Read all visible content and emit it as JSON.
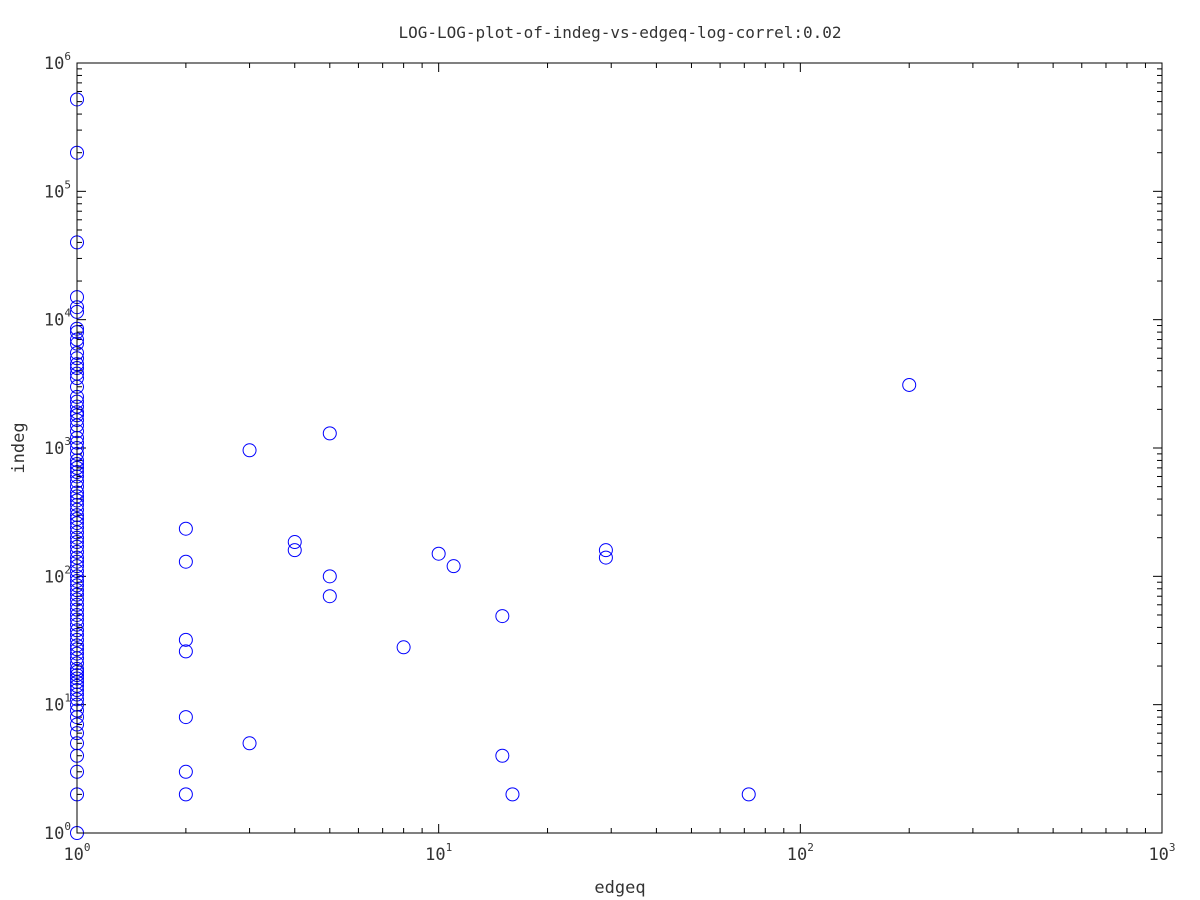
{
  "chart_data": {
    "type": "scatter",
    "title": "LOG-LOG-plot-of-indeg-vs-edgeq-log-correl:0.02",
    "xlabel": "edgeq",
    "ylabel": "indeg",
    "xscale": "log",
    "yscale": "log",
    "xlim": [
      1,
      1000
    ],
    "ylim": [
      1,
      1000000
    ],
    "x_ticks": [
      {
        "base": "10",
        "exp": "0"
      },
      {
        "base": "10",
        "exp": "1"
      },
      {
        "base": "10",
        "exp": "2"
      },
      {
        "base": "10",
        "exp": "3"
      }
    ],
    "y_ticks": [
      {
        "base": "10",
        "exp": "0"
      },
      {
        "base": "10",
        "exp": "1"
      },
      {
        "base": "10",
        "exp": "2"
      },
      {
        "base": "10",
        "exp": "3"
      },
      {
        "base": "10",
        "exp": "4"
      },
      {
        "base": "10",
        "exp": "5"
      },
      {
        "base": "10",
        "exp": "6"
      }
    ],
    "grid": false,
    "marker": "circle-open",
    "marker_color": "#0000ff",
    "points": [
      [
        1,
        520000
      ],
      [
        1,
        200000
      ],
      [
        1,
        40000
      ],
      [
        1,
        15000
      ],
      [
        1,
        12500
      ],
      [
        1,
        11500
      ],
      [
        1,
        8500
      ],
      [
        1,
        8000
      ],
      [
        1,
        7000
      ],
      [
        1,
        6500
      ],
      [
        1,
        5500
      ],
      [
        1,
        5000
      ],
      [
        1,
        4500
      ],
      [
        1,
        4200
      ],
      [
        1,
        3800
      ],
      [
        1,
        3500
      ],
      [
        1,
        3000
      ],
      [
        1,
        2500
      ],
      [
        1,
        2300
      ],
      [
        1,
        2100
      ],
      [
        1,
        1900
      ],
      [
        1,
        1800
      ],
      [
        1,
        1650
      ],
      [
        1,
        1500
      ],
      [
        1,
        1350
      ],
      [
        1,
        1200
      ],
      [
        1,
        1100
      ],
      [
        1,
        1000
      ],
      [
        1,
        900
      ],
      [
        1,
        800
      ],
      [
        1,
        750
      ],
      [
        1,
        700
      ],
      [
        1,
        650
      ],
      [
        1,
        600
      ],
      [
        1,
        550
      ],
      [
        1,
        500
      ],
      [
        1,
        450
      ],
      [
        1,
        420
      ],
      [
        1,
        390
      ],
      [
        1,
        360
      ],
      [
        1,
        330
      ],
      [
        1,
        300
      ],
      [
        1,
        280
      ],
      [
        1,
        260
      ],
      [
        1,
        240
      ],
      [
        1,
        220
      ],
      [
        1,
        200
      ],
      [
        1,
        185
      ],
      [
        1,
        170
      ],
      [
        1,
        155
      ],
      [
        1,
        140
      ],
      [
        1,
        130
      ],
      [
        1,
        120
      ],
      [
        1,
        110
      ],
      [
        1,
        100
      ],
      [
        1,
        92
      ],
      [
        1,
        85
      ],
      [
        1,
        78
      ],
      [
        1,
        72
      ],
      [
        1,
        66
      ],
      [
        1,
        60
      ],
      [
        1,
        55
      ],
      [
        1,
        50
      ],
      [
        1,
        46
      ],
      [
        1,
        42
      ],
      [
        1,
        38
      ],
      [
        1,
        35
      ],
      [
        1,
        32
      ],
      [
        1,
        29
      ],
      [
        1,
        27
      ],
      [
        1,
        25
      ],
      [
        1,
        23
      ],
      [
        1,
        21
      ],
      [
        1,
        19
      ],
      [
        1,
        18
      ],
      [
        1,
        17
      ],
      [
        1,
        16
      ],
      [
        1,
        15
      ],
      [
        1,
        14
      ],
      [
        1,
        13
      ],
      [
        1,
        12
      ],
      [
        1,
        11
      ],
      [
        1,
        10
      ],
      [
        1,
        9
      ],
      [
        1,
        8
      ],
      [
        1,
        7
      ],
      [
        1,
        6
      ],
      [
        1,
        5
      ],
      [
        1,
        4
      ],
      [
        1,
        3
      ],
      [
        1,
        2
      ],
      [
        1,
        1
      ],
      [
        2,
        235
      ],
      [
        2,
        130
      ],
      [
        2,
        32
      ],
      [
        2,
        26
      ],
      [
        2,
        8
      ],
      [
        2,
        3
      ],
      [
        2,
        2
      ],
      [
        3,
        960
      ],
      [
        3,
        5
      ],
      [
        4,
        185
      ],
      [
        4,
        160
      ],
      [
        5,
        1300
      ],
      [
        5,
        100
      ],
      [
        5,
        70
      ],
      [
        8,
        28
      ],
      [
        10,
        150
      ],
      [
        11,
        120
      ],
      [
        15,
        49
      ],
      [
        15,
        4
      ],
      [
        16,
        2
      ],
      [
        29,
        160
      ],
      [
        29,
        140
      ],
      [
        72,
        2
      ],
      [
        200,
        3100
      ]
    ]
  }
}
